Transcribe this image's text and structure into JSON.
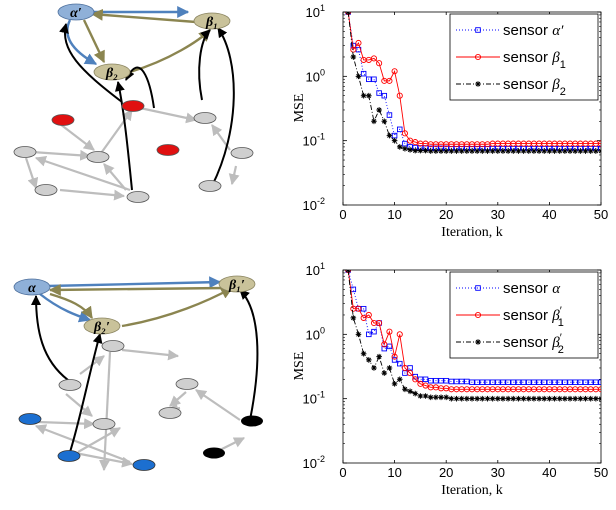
{
  "colors": {
    "blue_node": "#8fb0d8",
    "blue_node_stroke": "#4d6f9c",
    "olive_node": "#c9c29a",
    "olive_node_stroke": "#8a8460",
    "gray_node": "#cfcfcf",
    "red_node": "#e01010",
    "bright_blue_node": "#1c6fd0",
    "black_node": "#000000",
    "blue_edge": "#4f81bd",
    "olive_edge": "#8b8550",
    "gray_edge": "#bdbdbd",
    "series_blue": "#0000ff",
    "series_red": "#ff0000",
    "series_black": "#000000"
  },
  "diagrams": [
    {
      "node_labels": {
        "alpha": "α′",
        "beta1": "β₁",
        "beta2": "β₂"
      }
    },
    {
      "node_labels": {
        "alpha": "α",
        "beta1": "β₁′",
        "beta2": "β₂′"
      }
    }
  ],
  "chart_data": [
    {
      "type": "line",
      "xlabel": "Iteration, k",
      "ylabel": "MSE",
      "xlim": [
        0,
        50
      ],
      "ylim": [
        0.01,
        10
      ],
      "yscale": "log",
      "xticks": [
        0,
        10,
        20,
        30,
        40,
        50
      ],
      "yticks": [
        {
          "value": 0.01,
          "base": "10",
          "exp": "-2"
        },
        {
          "value": 0.1,
          "base": "10",
          "exp": "-1"
        },
        {
          "value": 1,
          "base": "10",
          "exp": "0"
        },
        {
          "value": 10,
          "base": "10",
          "exp": "1"
        }
      ],
      "legend_position": "top-right",
      "x": [
        1,
        2,
        3,
        4,
        5,
        6,
        7,
        8,
        9,
        10,
        11,
        12,
        13,
        14,
        15,
        16,
        17,
        18,
        19,
        20,
        21,
        22,
        23,
        24,
        25,
        26,
        27,
        28,
        29,
        30,
        31,
        32,
        33,
        34,
        35,
        36,
        37,
        38,
        39,
        40,
        41,
        42,
        43,
        44,
        45,
        46,
        47,
        48,
        49,
        50
      ],
      "series": [
        {
          "name_prefix": "sensor ",
          "name_symbol": "α′",
          "name_sub": "",
          "color": "#0000ff",
          "marker": "square",
          "dash": "1,2",
          "values": [
            10,
            3.0,
            2.6,
            1.1,
            0.9,
            0.9,
            0.55,
            0.5,
            0.25,
            0.12,
            0.15,
            0.09,
            0.08,
            0.078,
            0.077,
            0.077,
            0.076,
            0.076,
            0.076,
            0.076,
            0.075,
            0.075,
            0.075,
            0.075,
            0.075,
            0.075,
            0.075,
            0.075,
            0.075,
            0.075,
            0.075,
            0.075,
            0.075,
            0.075,
            0.075,
            0.075,
            0.075,
            0.075,
            0.075,
            0.075,
            0.075,
            0.075,
            0.075,
            0.075,
            0.075,
            0.075,
            0.075,
            0.075,
            0.075,
            0.075
          ]
        },
        {
          "name_prefix": "sensor ",
          "name_symbol": "β",
          "name_sub": "1",
          "color": "#ff0000",
          "marker": "circle",
          "dash": "",
          "values": [
            10,
            2.6,
            3.3,
            1.8,
            1.8,
            1.9,
            1.6,
            0.85,
            0.85,
            1.2,
            0.5,
            0.13,
            0.1,
            0.095,
            0.09,
            0.09,
            0.088,
            0.088,
            0.088,
            0.088,
            0.088,
            0.088,
            0.088,
            0.088,
            0.088,
            0.088,
            0.088,
            0.088,
            0.09,
            0.09,
            0.09,
            0.09,
            0.09,
            0.09,
            0.09,
            0.09,
            0.09,
            0.09,
            0.09,
            0.09,
            0.09,
            0.09,
            0.09,
            0.09,
            0.09,
            0.09,
            0.09,
            0.09,
            0.09,
            0.09
          ]
        },
        {
          "name_prefix": "sensor ",
          "name_symbol": "β",
          "name_sub": "2",
          "color": "#000000",
          "marker": "star",
          "dash": "5,2,1,2",
          "values": [
            10,
            2.0,
            1.0,
            0.5,
            0.5,
            0.2,
            0.3,
            0.2,
            0.12,
            0.1,
            0.08,
            0.075,
            0.072,
            0.07,
            0.07,
            0.07,
            0.069,
            0.069,
            0.069,
            0.069,
            0.069,
            0.069,
            0.069,
            0.069,
            0.069,
            0.069,
            0.069,
            0.069,
            0.069,
            0.069,
            0.069,
            0.069,
            0.069,
            0.069,
            0.069,
            0.069,
            0.069,
            0.069,
            0.069,
            0.069,
            0.069,
            0.069,
            0.069,
            0.069,
            0.069,
            0.069,
            0.069,
            0.069,
            0.069,
            0.069
          ]
        }
      ]
    },
    {
      "type": "line",
      "xlabel": "Iteration, k",
      "ylabel": "MSE",
      "xlim": [
        0,
        50
      ],
      "ylim": [
        0.01,
        10
      ],
      "yscale": "log",
      "xticks": [
        0,
        10,
        20,
        30,
        40,
        50
      ],
      "yticks": [
        {
          "value": 0.01,
          "base": "10",
          "exp": "-2"
        },
        {
          "value": 0.1,
          "base": "10",
          "exp": "-1"
        },
        {
          "value": 1,
          "base": "10",
          "exp": "0"
        },
        {
          "value": 10,
          "base": "10",
          "exp": "1"
        }
      ],
      "legend_position": "top-right",
      "x": [
        1,
        2,
        3,
        4,
        5,
        6,
        7,
        8,
        9,
        10,
        11,
        12,
        13,
        14,
        15,
        16,
        17,
        18,
        19,
        20,
        21,
        22,
        23,
        24,
        25,
        26,
        27,
        28,
        29,
        30,
        31,
        32,
        33,
        34,
        35,
        36,
        37,
        38,
        39,
        40,
        41,
        42,
        43,
        44,
        45,
        46,
        47,
        48,
        49,
        50
      ],
      "series": [
        {
          "name_prefix": "sensor ",
          "name_symbol": "α",
          "name_sub": "",
          "color": "#0000ff",
          "marker": "square",
          "dash": "1,2",
          "values": [
            10,
            5.0,
            2.5,
            2.5,
            1.0,
            1.1,
            1.5,
            0.6,
            0.65,
            0.4,
            0.35,
            0.25,
            0.3,
            0.22,
            0.2,
            0.2,
            0.19,
            0.19,
            0.19,
            0.19,
            0.185,
            0.185,
            0.185,
            0.185,
            0.18,
            0.18,
            0.18,
            0.18,
            0.18,
            0.18,
            0.18,
            0.18,
            0.18,
            0.18,
            0.18,
            0.18,
            0.18,
            0.18,
            0.18,
            0.18,
            0.18,
            0.18,
            0.18,
            0.18,
            0.18,
            0.18,
            0.18,
            0.18,
            0.18,
            0.18
          ]
        },
        {
          "name_prefix": "sensor ",
          "name_symbol": "β",
          "name_sub": "1",
          "prime": "′",
          "color": "#ff0000",
          "marker": "circle",
          "dash": "",
          "values": [
            10,
            2.5,
            2.5,
            1.8,
            2.0,
            1.5,
            1.5,
            0.7,
            1.1,
            0.45,
            1.0,
            0.3,
            0.25,
            0.2,
            0.17,
            0.16,
            0.15,
            0.15,
            0.145,
            0.145,
            0.14,
            0.14,
            0.14,
            0.14,
            0.14,
            0.14,
            0.14,
            0.14,
            0.14,
            0.14,
            0.14,
            0.14,
            0.14,
            0.14,
            0.14,
            0.14,
            0.14,
            0.14,
            0.14,
            0.14,
            0.14,
            0.14,
            0.14,
            0.14,
            0.14,
            0.14,
            0.14,
            0.14,
            0.14,
            0.14
          ]
        },
        {
          "name_prefix": "sensor ",
          "name_symbol": "β",
          "name_sub": "2",
          "prime": "′",
          "color": "#000000",
          "marker": "star",
          "dash": "5,2,1,2",
          "values": [
            10,
            1.8,
            1.0,
            0.5,
            0.4,
            0.3,
            0.45,
            0.25,
            0.3,
            0.17,
            0.2,
            0.14,
            0.13,
            0.12,
            0.11,
            0.11,
            0.105,
            0.105,
            0.105,
            0.105,
            0.1,
            0.1,
            0.1,
            0.1,
            0.1,
            0.1,
            0.1,
            0.1,
            0.1,
            0.1,
            0.1,
            0.1,
            0.1,
            0.1,
            0.1,
            0.1,
            0.1,
            0.1,
            0.1,
            0.1,
            0.1,
            0.1,
            0.1,
            0.1,
            0.1,
            0.1,
            0.1,
            0.1,
            0.1,
            0.1
          ]
        }
      ]
    }
  ]
}
